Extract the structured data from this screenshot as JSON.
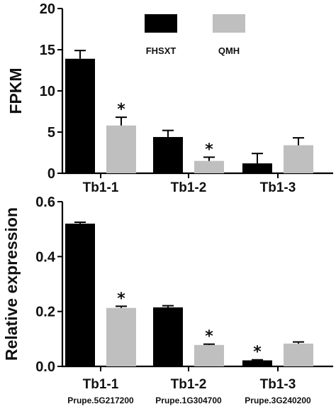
{
  "chart_data": [
    {
      "type": "bar",
      "ylabel": "FPKM",
      "ylim": [
        0,
        20
      ],
      "yticks": [
        "0",
        "5",
        "10",
        "15",
        "20"
      ],
      "categories": [
        "Tb1-1",
        "Tb1-2",
        "Tb1-3"
      ],
      "subcategories": [],
      "legend": {
        "placement": "top-center"
      },
      "series": [
        {
          "name": "FHSXT",
          "color": "#000000",
          "values": [
            13.9,
            4.4,
            1.2
          ],
          "errors": [
            1.0,
            0.8,
            1.2
          ]
        },
        {
          "name": "QMH",
          "color": "#bfbfbf",
          "values": [
            5.8,
            1.5,
            3.4
          ],
          "errors": [
            1.0,
            0.45,
            0.9
          ]
        }
      ],
      "significance": [
        {
          "category": 0,
          "series": 1,
          "mark": "*"
        },
        {
          "category": 1,
          "series": 1,
          "mark": "*"
        }
      ]
    },
    {
      "type": "bar",
      "ylabel": "Relative expression",
      "ylim": [
        0,
        0.6
      ],
      "yticks": [
        "0.0",
        "0.2",
        "0.4",
        "0.6"
      ],
      "categories": [
        "Tb1-1",
        "Tb1-2",
        "Tb1-3"
      ],
      "subcategories": [
        "Prupe.5G217200",
        "Prupe.1G304700",
        "Prupe.3G240200"
      ],
      "series": [
        {
          "name": "FHSXT",
          "color": "#000000",
          "values": [
            0.52,
            0.215,
            0.022
          ],
          "errors": [
            0.005,
            0.006,
            0.002
          ]
        },
        {
          "name": "QMH",
          "color": "#bfbfbf",
          "values": [
            0.213,
            0.078,
            0.083
          ],
          "errors": [
            0.006,
            0.003,
            0.006
          ]
        }
      ],
      "significance": [
        {
          "category": 0,
          "series": 1,
          "mark": "*"
        },
        {
          "category": 1,
          "series": 1,
          "mark": "*"
        },
        {
          "category": 2,
          "series": 0,
          "mark": "*"
        }
      ]
    }
  ]
}
